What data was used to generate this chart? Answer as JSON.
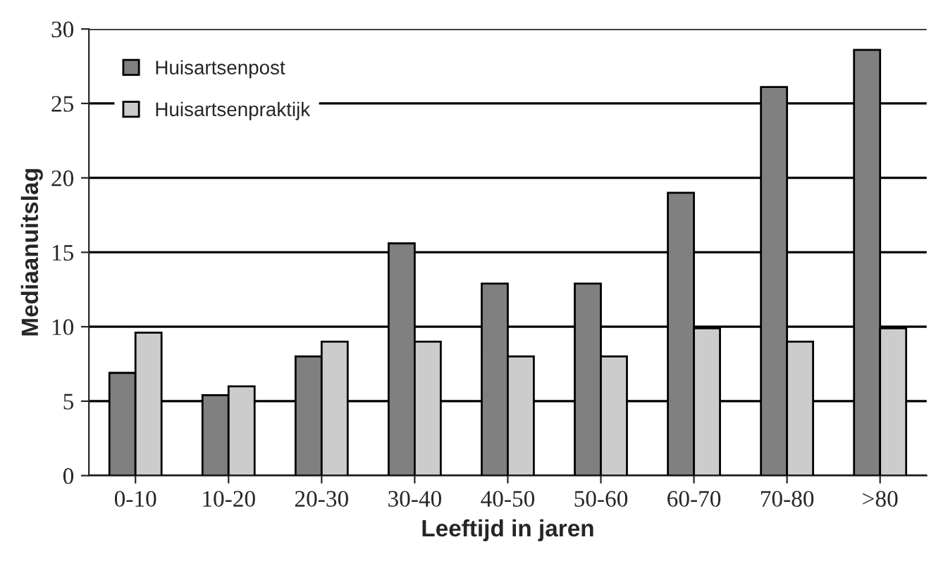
{
  "chart_data": {
    "type": "bar",
    "xlabel": "Leeftijd in jaren",
    "ylabel": "Mediaanuitslag",
    "categories": [
      "0-10",
      "10-20",
      "20-30",
      "30-40",
      "40-50",
      "50-60",
      "60-70",
      "70-80",
      ">80"
    ],
    "series": [
      {
        "name": "Huisartsenpost",
        "color": "#808080",
        "values": [
          6.9,
          5.4,
          8.0,
          15.6,
          12.9,
          12.9,
          19.0,
          26.1,
          28.6
        ]
      },
      {
        "name": "Huisartsenpraktijk",
        "color": "#cccccc",
        "values": [
          9.6,
          6.0,
          9.0,
          9.0,
          8.0,
          8.0,
          9.9,
          9.0,
          9.9
        ]
      }
    ],
    "ylim": [
      0,
      30
    ],
    "yticks": [
      0,
      5,
      10,
      15,
      20,
      25,
      30
    ],
    "grid": "y",
    "legend": "top left"
  }
}
